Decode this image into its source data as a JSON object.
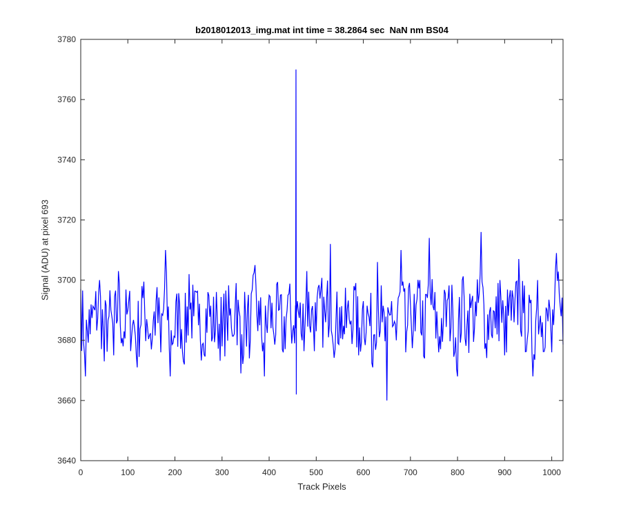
{
  "chart_data": {
    "type": "line",
    "title": "b2018012013_img.mat int time = 38.2864 sec  NaN nm BS04",
    "xlabel": "Track Pixels",
    "ylabel": "Signal (ADU) at pixel 693",
    "xlim": [
      0,
      1024
    ],
    "ylim": [
      3640,
      3780
    ],
    "xticks": [
      0,
      100,
      200,
      300,
      400,
      500,
      600,
      700,
      800,
      900,
      1000
    ],
    "yticks": [
      3640,
      3660,
      3680,
      3700,
      3720,
      3740,
      3760,
      3780
    ],
    "grid": false,
    "line_color": "#0000ff",
    "series": [
      {
        "x_start": 0,
        "x_step": 10,
        "values": [
          3697,
          3668,
          3682,
          3690,
          3700,
          3673,
          3688,
          3675,
          3703,
          3678,
          3690,
          3685,
          3671,
          3698,
          3687,
          3677,
          3693,
          3676,
          3710,
          3668,
          3681,
          3692,
          3672,
          3702,
          3688,
          3685,
          3679,
          3696,
          3681,
          3687,
          3678,
          3689,
          3684,
          3699,
          3669,
          3688,
          3680,
          3705,
          3685,
          3668,
          3695,
          3682,
          3690,
          3676,
          3695,
          3683,
          3693,
          3680,
          3703,
          3690,
          3683,
          3697,
          3686,
          3712,
          3677,
          3691,
          3682,
          3687,
          3698,
          3675,
          3693,
          3689,
          3671,
          3706,
          3686,
          3660,
          3693,
          3680,
          3710,
          3676,
          3692,
          3683,
          3700,
          3674,
          3714,
          3690,
          3676,
          3686,
          3694,
          3690,
          3668,
          3700,
          3685,
          3693,
          3688,
          3716,
          3679,
          3691,
          3684,
          3700,
          3675,
          3694,
          3686,
          3707,
          3689,
          3683,
          3668,
          3700,
          3686,
          3690,
          3676,
          3709,
          3688,
          3682,
          3696,
          3669,
          3692,
          3686,
          3705,
          3676,
          3689,
          3679,
          3694,
          3684,
          3700,
          3673,
          3690,
          3682,
          3697,
          3687,
          3674,
          3693,
          3684,
          3701,
          3687,
          3671,
          3696,
          3681,
          3692,
          3683,
          3675,
          3706,
          3685,
          3688,
          3680,
          3694,
          3668,
          3697,
          3688,
          3690,
          3681,
          3696,
          3684,
          3695,
          3677,
          3699,
          3685,
          3680,
          3690,
          3662,
          3693,
          3682,
          3708,
          3686,
          3690,
          3678,
          3695,
          3681,
          3706,
          3676,
          3689,
          3683,
          3692,
          3674,
          3703,
          3682,
          3696,
          3686,
          3667,
          3688,
          3682,
          3695,
          3690,
          3683,
          3669,
          3700,
          3686,
          3692,
          3678,
          3700,
          3684,
          3672,
          3695,
          3688,
          3693,
          3679,
          3704,
          3686,
          3670,
          3695,
          3683,
          3690,
          3681,
          3700,
          3674,
          3692,
          3688,
          3683,
          3696,
          3685,
          3679,
          3694,
          3689,
          3686,
          3671,
          3698,
          3684,
          3692,
          3679,
          3700,
          3683,
          3689,
          3676,
          3697,
          3685,
          3690,
          3683,
          3686,
          3692,
          3681,
          3667,
          3695,
          3684,
          3705,
          3688,
          3674,
          3694,
          3683,
          3690,
          3680,
          3698,
          3685,
          3677,
          3703,
          3686,
          3691,
          3682,
          3697,
          3685,
          3679
        ]
      }
    ],
    "spike": {
      "x": 457,
      "y": 3770
    }
  }
}
